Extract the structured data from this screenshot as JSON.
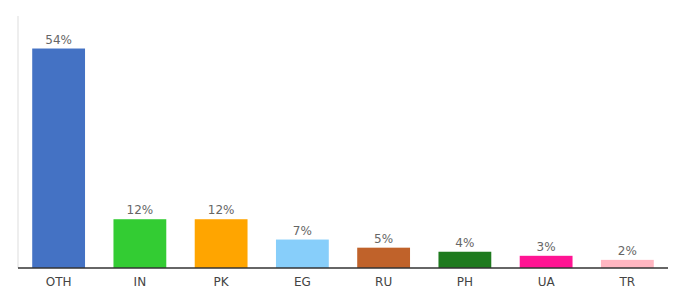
{
  "chart_data": {
    "type": "bar",
    "categories": [
      "OTH",
      "IN",
      "PK",
      "EG",
      "RU",
      "PH",
      "UA",
      "TR"
    ],
    "values": [
      54,
      12,
      12,
      7,
      5,
      4,
      3,
      2
    ],
    "value_labels": [
      "54%",
      "12%",
      "12%",
      "7%",
      "5%",
      "4%",
      "3%",
      "2%"
    ],
    "colors": [
      "#4472C4",
      "#33CC33",
      "#FFA500",
      "#87CEFA",
      "#C0622A",
      "#1E7A1E",
      "#FF1493",
      "#FFB6C1"
    ],
    "ylim": [
      0,
      62
    ],
    "data_labels": true,
    "tick_labels": "x"
  }
}
